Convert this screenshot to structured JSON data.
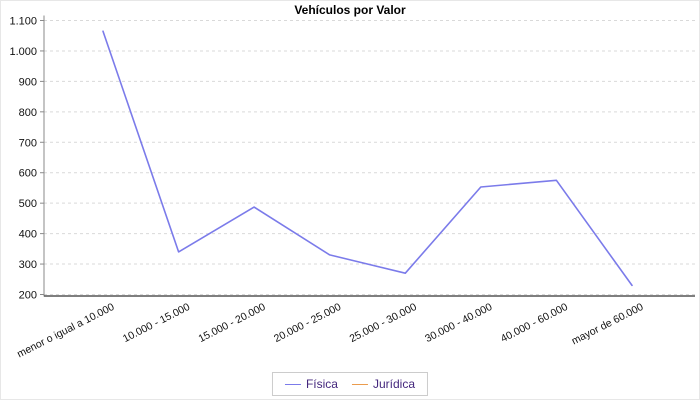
{
  "chart_data": {
    "type": "line",
    "title": "Vehículos por Valor",
    "categories": [
      "menor o igual a 10.000",
      "10.000 - 15.000",
      "15.000 - 20.000",
      "20.000 - 25.000",
      "25.000 - 30.000",
      "30.000 - 40.000",
      "40.000 - 60.000",
      "mayor de 60.000"
    ],
    "series": [
      {
        "name": "Física",
        "color": "#7b7bea",
        "values": [
          1065,
          340,
          487,
          330,
          270,
          553,
          575,
          230
        ]
      },
      {
        "name": "Jurídica",
        "color": "#eb9c4d",
        "values": []
      }
    ],
    "ylim": [
      200,
      1100
    ],
    "ytick_step": 100,
    "ytick_labels": [
      "200",
      "300",
      "400",
      "500",
      "600",
      "700",
      "800",
      "900",
      "1.000",
      "1.100"
    ],
    "grid": "horizontal-dashed",
    "legend_position": "bottom-center"
  },
  "legend": {
    "items": [
      {
        "label": "Física",
        "color": "#7b7bea"
      },
      {
        "label": "Jurídica",
        "color": "#eb9c4d"
      }
    ],
    "text_color": "#44277d"
  },
  "colors": {
    "grid": "#d9d9d9",
    "y_axis": "#8a8a8a",
    "x_axis": "#555555",
    "tick_text": "#111111",
    "background": "#ffffff"
  }
}
